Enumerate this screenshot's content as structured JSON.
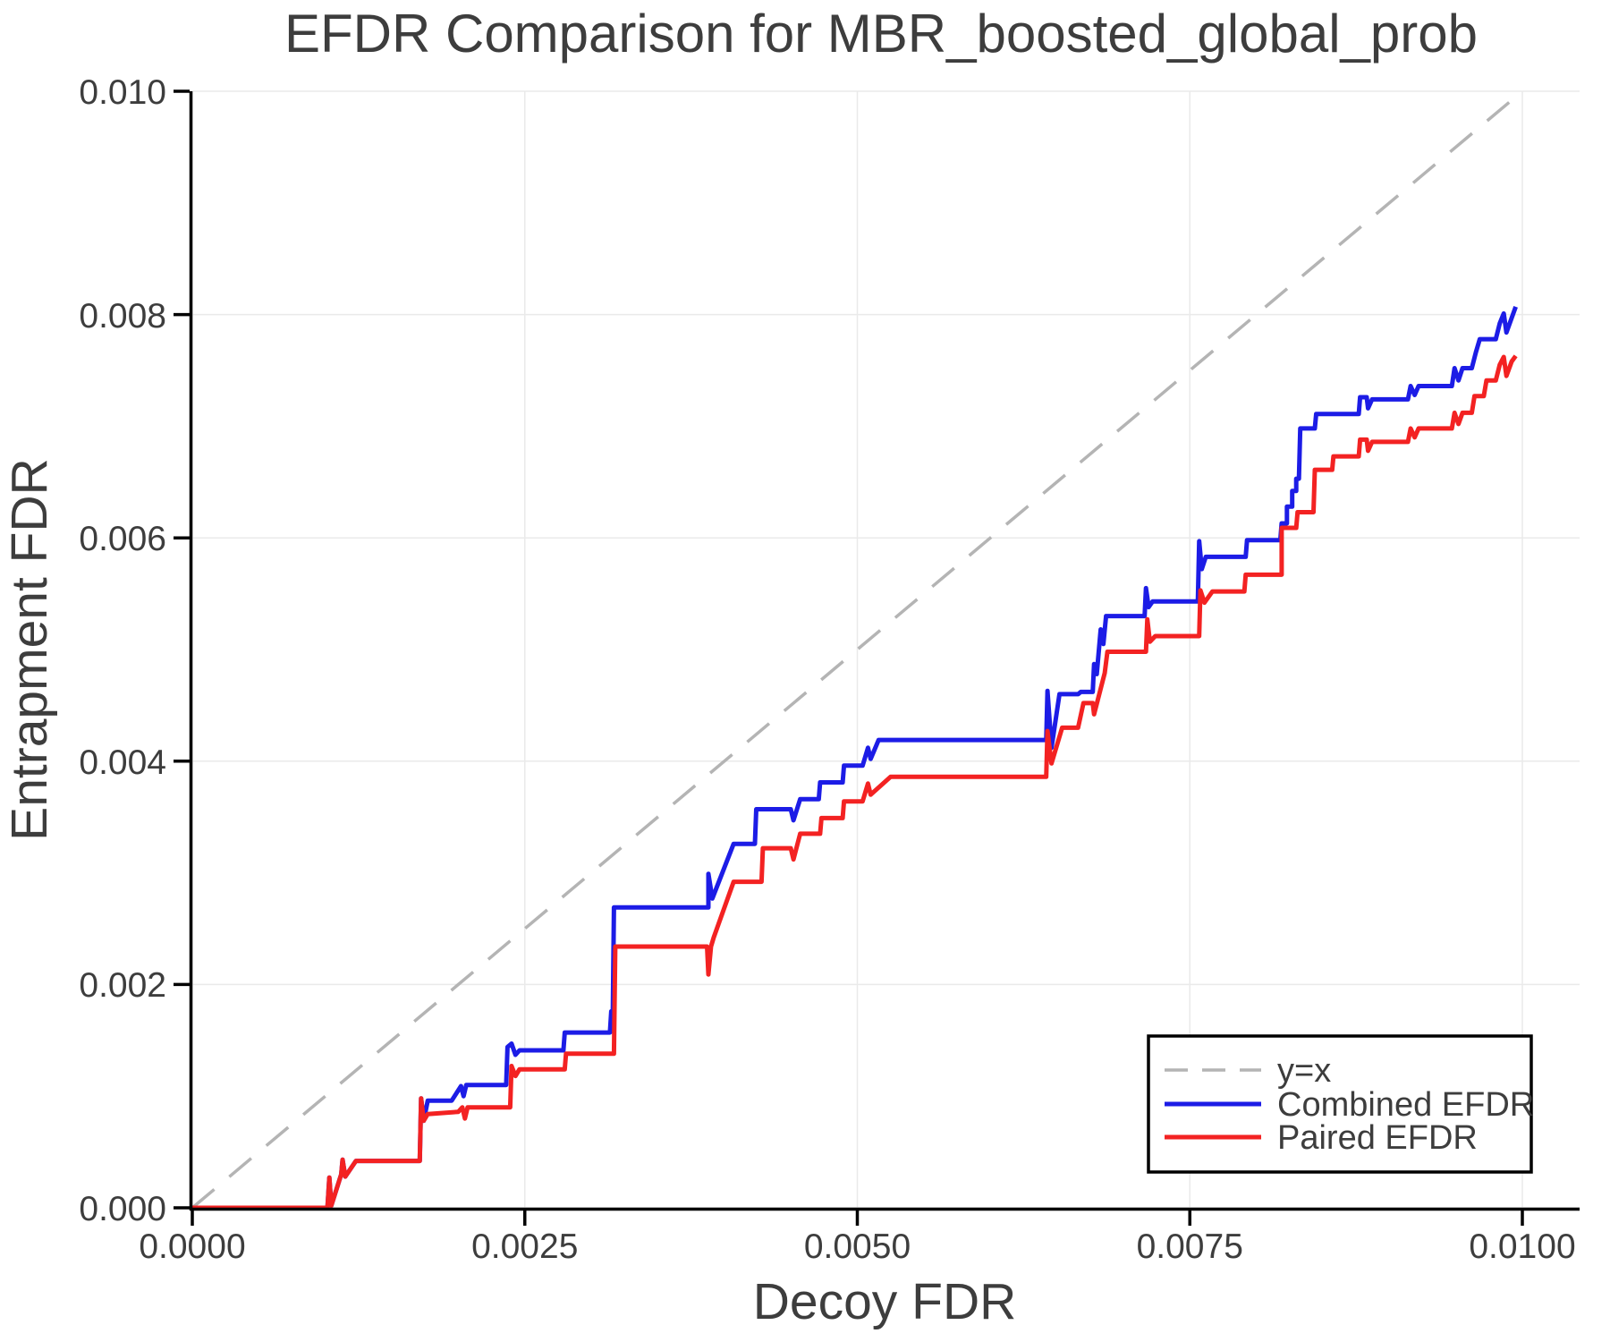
{
  "chart_data": {
    "type": "line",
    "title": "EFDR Comparison for MBR_boosted_global_prob",
    "xlabel": "Decoy FDR",
    "ylabel": "Entrapment FDR",
    "xlim": [
      0,
      0.01043
    ],
    "ylim": [
      0,
      0.01
    ],
    "grid": true,
    "x_ticks": [
      0,
      0.0025,
      0.005,
      0.0075,
      0.01
    ],
    "x_tick_labels": [
      "0.0000",
      "0.0025",
      "0.0050",
      "0.0075",
      "0.0100"
    ],
    "y_ticks": [
      0,
      0.002,
      0.004,
      0.006,
      0.008,
      0.01
    ],
    "y_tick_labels": [
      "0.000",
      "0.002",
      "0.004",
      "0.006",
      "0.008",
      "0.010"
    ],
    "colors": {
      "grid": "#eaeaea",
      "spine": "#000000",
      "text": "#3d3d3d",
      "reference": "#b4b4b4",
      "combined": "#1c1ce6",
      "paired": "#f32222"
    },
    "reference_line": {
      "label": "y=x",
      "from": [
        0,
        0
      ],
      "to": [
        0.01,
        0.01
      ],
      "dashed": true
    },
    "legend": {
      "position": "lower right",
      "entries": [
        {
          "label": "y=x",
          "color": "#b4b4b4",
          "dash": true
        },
        {
          "label": "Combined EFDR",
          "color": "#1c1ce6",
          "dash": false
        },
        {
          "label": "Paired EFDR",
          "color": "#f32222",
          "dash": false
        }
      ]
    },
    "series": [
      {
        "name": "Combined EFDR",
        "color": "#1c1ce6",
        "points": [
          [
            0.0,
            0.0
          ],
          [
            0.001016,
            0.0
          ],
          [
            0.00103,
            0.00027
          ],
          [
            0.001045,
            2e-05
          ],
          [
            0.00112,
            0.0003
          ],
          [
            0.00113,
            0.00043
          ],
          [
            0.00115,
            0.00028
          ],
          [
            0.00123,
            0.00042
          ],
          [
            0.00171,
            0.00042
          ],
          [
            0.00172,
            0.00098
          ],
          [
            0.00174,
            0.00078
          ],
          [
            0.00177,
            0.00096
          ],
          [
            0.00195,
            0.00096
          ],
          [
            0.00202,
            0.00109
          ],
          [
            0.00204,
            0.001
          ],
          [
            0.00206,
            0.0011
          ],
          [
            0.00236,
            0.0011
          ],
          [
            0.00237,
            0.00144
          ],
          [
            0.0024,
            0.00147
          ],
          [
            0.00243,
            0.00137
          ],
          [
            0.00246,
            0.00141
          ],
          [
            0.00279,
            0.00141
          ],
          [
            0.0028,
            0.00157
          ],
          [
            0.00314,
            0.00157
          ],
          [
            0.00315,
            0.00176
          ],
          [
            0.00316,
            0.00158
          ],
          [
            0.00317,
            0.00269
          ],
          [
            0.00388,
            0.00269
          ],
          [
            0.00388,
            0.00299
          ],
          [
            0.00391,
            0.00277
          ],
          [
            0.00407,
            0.00326
          ],
          [
            0.00423,
            0.00326
          ],
          [
            0.00424,
            0.00357
          ],
          [
            0.0045,
            0.00357
          ],
          [
            0.00452,
            0.00347
          ],
          [
            0.00457,
            0.00366
          ],
          [
            0.00471,
            0.00366
          ],
          [
            0.00472,
            0.00381
          ],
          [
            0.00489,
            0.00381
          ],
          [
            0.0049,
            0.00396
          ],
          [
            0.00504,
            0.00396
          ],
          [
            0.00508,
            0.00412
          ],
          [
            0.0051,
            0.00402
          ],
          [
            0.00516,
            0.00419
          ],
          [
            0.00642,
            0.00419
          ],
          [
            0.00643,
            0.00463
          ],
          [
            0.00646,
            0.00412
          ],
          [
            0.00652,
            0.0046
          ],
          [
            0.00666,
            0.0046
          ],
          [
            0.00668,
            0.00462
          ],
          [
            0.00677,
            0.00462
          ],
          [
            0.00678,
            0.00487
          ],
          [
            0.0068,
            0.00478
          ],
          [
            0.00683,
            0.00518
          ],
          [
            0.00685,
            0.00505
          ],
          [
            0.00687,
            0.0053
          ],
          [
            0.00716,
            0.0053
          ],
          [
            0.00717,
            0.00555
          ],
          [
            0.00719,
            0.00538
          ],
          [
            0.00722,
            0.00543
          ],
          [
            0.00756,
            0.00543
          ],
          [
            0.00757,
            0.00597
          ],
          [
            0.00759,
            0.00572
          ],
          [
            0.00762,
            0.00583
          ],
          [
            0.00792,
            0.00583
          ],
          [
            0.00793,
            0.00598
          ],
          [
            0.00818,
            0.00598
          ],
          [
            0.00819,
            0.00613
          ],
          [
            0.00823,
            0.00613
          ],
          [
            0.00823,
            0.00628
          ],
          [
            0.00827,
            0.00628
          ],
          [
            0.00827,
            0.00642
          ],
          [
            0.0083,
            0.00642
          ],
          [
            0.0083,
            0.00653
          ],
          [
            0.00832,
            0.00653
          ],
          [
            0.00833,
            0.00698
          ],
          [
            0.00844,
            0.00698
          ],
          [
            0.00845,
            0.00711
          ],
          [
            0.00877,
            0.00711
          ],
          [
            0.00878,
            0.00726
          ],
          [
            0.00883,
            0.00726
          ],
          [
            0.00884,
            0.00716
          ],
          [
            0.00887,
            0.00724
          ],
          [
            0.00914,
            0.00724
          ],
          [
            0.00916,
            0.00736
          ],
          [
            0.00919,
            0.00728
          ],
          [
            0.00922,
            0.00736
          ],
          [
            0.00947,
            0.00736
          ],
          [
            0.00949,
            0.00752
          ],
          [
            0.00952,
            0.00741
          ],
          [
            0.00955,
            0.00752
          ],
          [
            0.00962,
            0.00752
          ],
          [
            0.00965,
            0.00766
          ],
          [
            0.00968,
            0.00778
          ],
          [
            0.0098,
            0.00778
          ],
          [
            0.00983,
            0.00792
          ],
          [
            0.00986,
            0.00801
          ],
          [
            0.00988,
            0.00784
          ],
          [
            0.00992,
            0.00797
          ],
          [
            0.00995,
            0.00807
          ]
        ]
      },
      {
        "name": "Paired EFDR",
        "color": "#f32222",
        "points": [
          [
            0.0,
            0.0
          ],
          [
            0.001016,
            0.0
          ],
          [
            0.00103,
            0.00027
          ],
          [
            0.001045,
            2e-05
          ],
          [
            0.00112,
            0.0003
          ],
          [
            0.00113,
            0.00043
          ],
          [
            0.00115,
            0.00028
          ],
          [
            0.00123,
            0.00042
          ],
          [
            0.00171,
            0.00042
          ],
          [
            0.00172,
            0.00098
          ],
          [
            0.00174,
            0.00078
          ],
          [
            0.00177,
            0.00084
          ],
          [
            0.002,
            0.00086
          ],
          [
            0.00203,
            0.0009
          ],
          [
            0.00205,
            0.0008
          ],
          [
            0.00207,
            0.0009
          ],
          [
            0.00239,
            0.0009
          ],
          [
            0.0024,
            0.00127
          ],
          [
            0.00243,
            0.00118
          ],
          [
            0.00246,
            0.00124
          ],
          [
            0.0028,
            0.00124
          ],
          [
            0.00281,
            0.00138
          ],
          [
            0.00317,
            0.00138
          ],
          [
            0.00318,
            0.00234
          ],
          [
            0.00387,
            0.00234
          ],
          [
            0.00388,
            0.00209
          ],
          [
            0.0039,
            0.00234
          ],
          [
            0.00392,
            0.00242
          ],
          [
            0.00407,
            0.00292
          ],
          [
            0.00428,
            0.00292
          ],
          [
            0.00429,
            0.00322
          ],
          [
            0.0045,
            0.00322
          ],
          [
            0.00452,
            0.00312
          ],
          [
            0.00457,
            0.00335
          ],
          [
            0.00472,
            0.00335
          ],
          [
            0.00473,
            0.00349
          ],
          [
            0.00489,
            0.00349
          ],
          [
            0.0049,
            0.00364
          ],
          [
            0.00504,
            0.00364
          ],
          [
            0.00508,
            0.0038
          ],
          [
            0.0051,
            0.0037
          ],
          [
            0.00525,
            0.00386
          ],
          [
            0.00642,
            0.00386
          ],
          [
            0.00643,
            0.00427
          ],
          [
            0.00646,
            0.00398
          ],
          [
            0.00654,
            0.0043
          ],
          [
            0.00666,
            0.0043
          ],
          [
            0.0067,
            0.00452
          ],
          [
            0.00677,
            0.00452
          ],
          [
            0.00678,
            0.00442
          ],
          [
            0.00686,
            0.00479
          ],
          [
            0.00688,
            0.00498
          ],
          [
            0.00717,
            0.00498
          ],
          [
            0.00718,
            0.00527
          ],
          [
            0.0072,
            0.00507
          ],
          [
            0.00724,
            0.00512
          ],
          [
            0.00757,
            0.00512
          ],
          [
            0.00758,
            0.00553
          ],
          [
            0.00761,
            0.00542
          ],
          [
            0.00767,
            0.00552
          ],
          [
            0.00791,
            0.00552
          ],
          [
            0.00792,
            0.00567
          ],
          [
            0.00819,
            0.00567
          ],
          [
            0.00819,
            0.00609
          ],
          [
            0.0083,
            0.00609
          ],
          [
            0.00831,
            0.00623
          ],
          [
            0.00843,
            0.00623
          ],
          [
            0.00844,
            0.00661
          ],
          [
            0.00857,
            0.00661
          ],
          [
            0.00858,
            0.00673
          ],
          [
            0.00877,
            0.00673
          ],
          [
            0.00878,
            0.00688
          ],
          [
            0.00883,
            0.00688
          ],
          [
            0.00884,
            0.00678
          ],
          [
            0.00887,
            0.00686
          ],
          [
            0.00914,
            0.00686
          ],
          [
            0.00916,
            0.00698
          ],
          [
            0.00919,
            0.0069
          ],
          [
            0.00922,
            0.00698
          ],
          [
            0.00947,
            0.00698
          ],
          [
            0.00949,
            0.00712
          ],
          [
            0.00952,
            0.00702
          ],
          [
            0.00955,
            0.00712
          ],
          [
            0.00962,
            0.00712
          ],
          [
            0.00964,
            0.00727
          ],
          [
            0.00971,
            0.00727
          ],
          [
            0.00973,
            0.00741
          ],
          [
            0.0098,
            0.00741
          ],
          [
            0.00983,
            0.00755
          ],
          [
            0.00986,
            0.00762
          ],
          [
            0.00988,
            0.00745
          ],
          [
            0.00992,
            0.00758
          ],
          [
            0.00995,
            0.00763
          ]
        ]
      }
    ]
  }
}
